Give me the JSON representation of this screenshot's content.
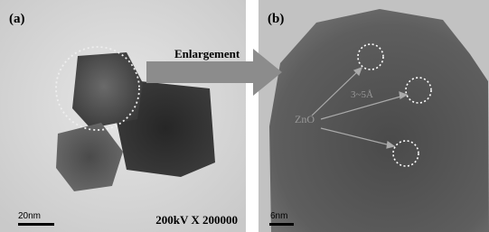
{
  "panels": [
    {
      "label": "(a)",
      "scale_bar": "20nm",
      "caption": "200kV X 200000"
    },
    {
      "label": "(b)",
      "scale_bar": "6nm",
      "annotations": [
        "ZnO",
        "3~5Å"
      ]
    }
  ],
  "arrow_label": "Enlargement"
}
